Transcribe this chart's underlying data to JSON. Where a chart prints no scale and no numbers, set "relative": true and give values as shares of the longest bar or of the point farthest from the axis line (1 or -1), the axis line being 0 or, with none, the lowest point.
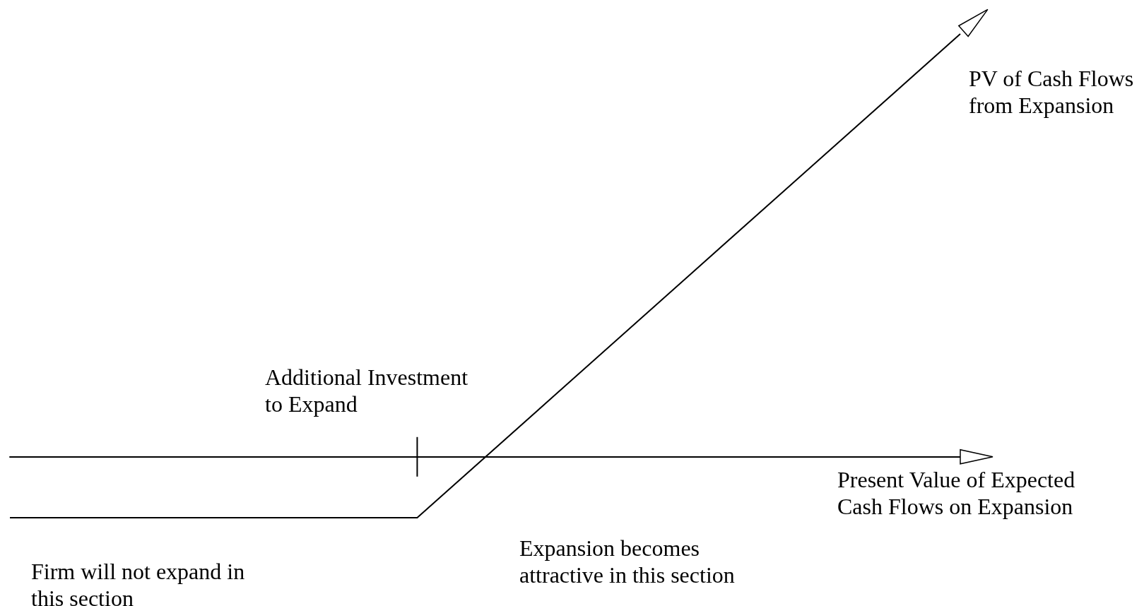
{
  "chart_data": {
    "type": "line",
    "relative": true,
    "grid": false,
    "legend": false,
    "marker": "none",
    "line_style": "solid",
    "categories": [
      null,
      null,
      null,
      null,
      null,
      null,
      null,
      null
    ],
    "series": [
      {
        "name": "PV of Cash Flows\nfrom Expansion",
        "color": "#000000",
        "values": [
          -0.144,
          -0.144,
          -0.144,
          -0.144,
          0.142,
          0.428,
          0.714,
          1
        ]
      }
    ],
    "xlabel": "Present Value of Expected\nCash Flows on Expansion",
    "annotations": [
      "Additional Investment\nto Expand",
      "Expansion becomes\nattractive in this section",
      "Firm will not expand in\nthis section"
    ]
  }
}
